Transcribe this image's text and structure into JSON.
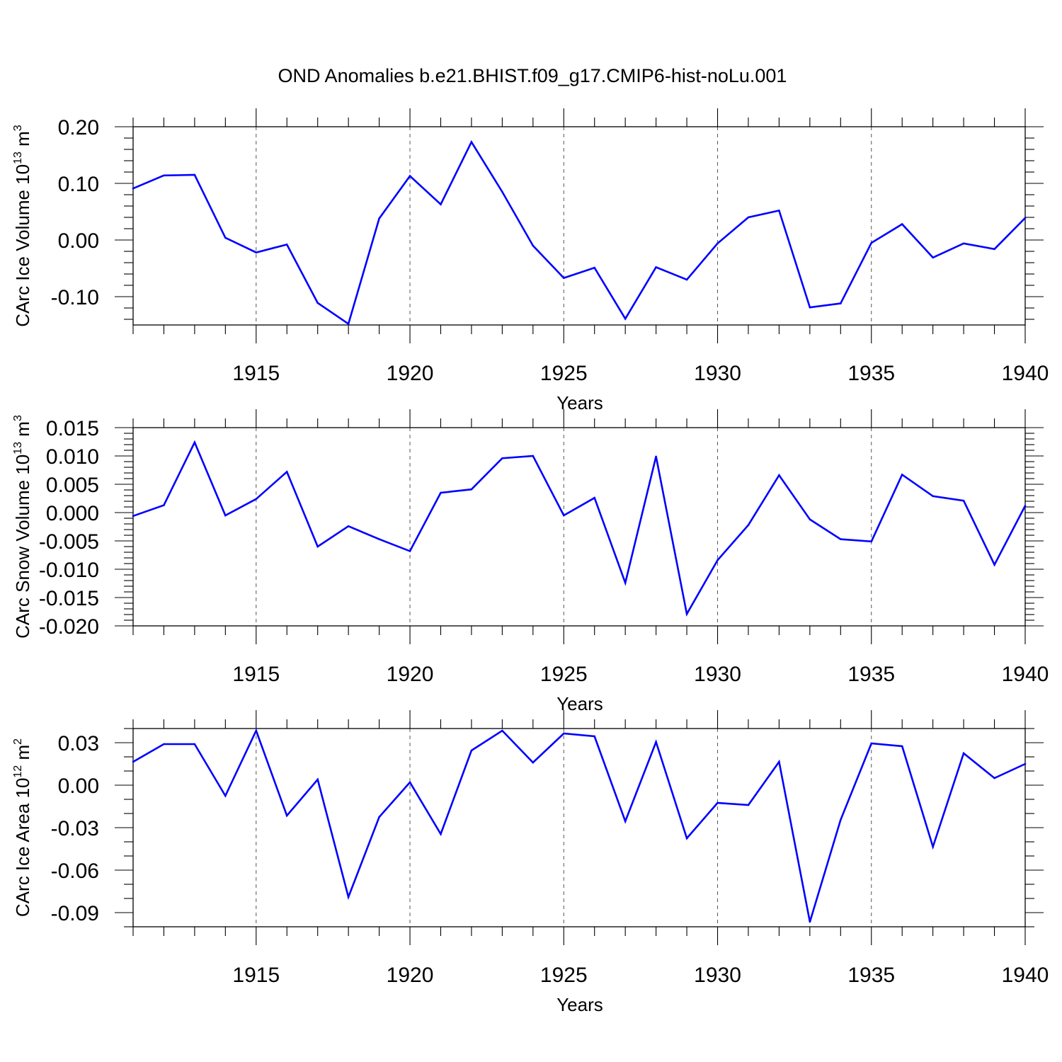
{
  "page_title": "OND Anomalies b.e21.BHIST.f09_g17.CMIP6-hist-noLu.001",
  "colors": {
    "line": "#0000ff",
    "grid": "#555555"
  },
  "chart_data": [
    {
      "type": "line",
      "ylabel": "CArc Ice Volume 10",
      "ylabel_exp": "13",
      "ylabel_unit": " m",
      "ylabel_unit_exp": "3",
      "xlabel": "Years",
      "xlim": [
        1911,
        1940
      ],
      "ylim": [
        -0.15,
        0.2
      ],
      "yticks": [
        -0.1,
        0.0,
        0.1,
        0.2
      ],
      "ytick_labels": [
        "-0.10",
        "0.00",
        "0.10",
        "0.20"
      ],
      "yminor_step": 0.02,
      "xticks": [
        1915,
        1920,
        1925,
        1930,
        1935,
        1940
      ],
      "xtick_labels": [
        "1915",
        "1920",
        "1925",
        "1930",
        "1935",
        "1940"
      ],
      "grid": "vertical dashed at major x ticks",
      "x": [
        1911,
        1912,
        1913,
        1914,
        1915,
        1916,
        1917,
        1918,
        1919,
        1920,
        1921,
        1922,
        1923,
        1924,
        1925,
        1926,
        1927,
        1928,
        1929,
        1930,
        1931,
        1932,
        1933,
        1934,
        1935,
        1936,
        1937,
        1938,
        1939,
        1940
      ],
      "values": [
        0.091,
        0.114,
        0.115,
        0.004,
        -0.022,
        -0.008,
        -0.111,
        -0.148,
        0.038,
        0.113,
        0.063,
        0.173,
        0.085,
        -0.01,
        -0.067,
        -0.049,
        -0.139,
        -0.048,
        -0.07,
        -0.006,
        0.04,
        0.052,
        -0.119,
        -0.112,
        -0.005,
        0.028,
        -0.031,
        -0.006,
        -0.016,
        0.039
      ]
    },
    {
      "type": "line",
      "ylabel": "CArc Snow Volume 10",
      "ylabel_exp": "13",
      "ylabel_unit": " m",
      "ylabel_unit_exp": "3",
      "xlabel": "Years",
      "xlim": [
        1911,
        1940
      ],
      "ylim": [
        -0.02,
        0.015
      ],
      "yticks": [
        -0.02,
        -0.015,
        -0.01,
        -0.005,
        0.0,
        0.005,
        0.01,
        0.015
      ],
      "ytick_labels": [
        "-0.020",
        "-0.015",
        "-0.010",
        "-0.005",
        "0.000",
        "0.005",
        "0.010",
        "0.015"
      ],
      "yminor_step": 0.001,
      "xticks": [
        1915,
        1920,
        1925,
        1930,
        1935,
        1940
      ],
      "xtick_labels": [
        "1915",
        "1920",
        "1925",
        "1930",
        "1935",
        "1940"
      ],
      "grid": "vertical dashed at major x ticks",
      "x": [
        1911,
        1912,
        1913,
        1914,
        1915,
        1916,
        1917,
        1918,
        1919,
        1920,
        1921,
        1922,
        1923,
        1924,
        1925,
        1926,
        1927,
        1928,
        1929,
        1930,
        1931,
        1932,
        1933,
        1934,
        1935,
        1936,
        1937,
        1938,
        1939,
        1940
      ],
      "values": [
        -0.0006,
        0.0013,
        0.0124,
        -0.0005,
        0.0024,
        0.0072,
        -0.006,
        -0.0024,
        -0.0047,
        -0.0068,
        0.0035,
        0.0041,
        0.0096,
        0.01,
        -0.0005,
        0.0026,
        -0.0124,
        0.0099,
        -0.0179,
        -0.0084,
        -0.0022,
        0.0066,
        -0.0012,
        -0.0047,
        -0.0051,
        0.0067,
        0.0029,
        0.0021,
        -0.0092,
        0.0012
      ]
    },
    {
      "type": "line",
      "ylabel": "CArc Ice Area 10",
      "ylabel_exp": "12",
      "ylabel_unit": " m",
      "ylabel_unit_exp": "2",
      "xlabel": "Years",
      "xlim": [
        1911,
        1940
      ],
      "ylim": [
        -0.1,
        0.04
      ],
      "yticks": [
        -0.09,
        -0.06,
        -0.03,
        0.0,
        0.03
      ],
      "ytick_labels": [
        "-0.09",
        "-0.06",
        "-0.03",
        "0.00",
        "0.03"
      ],
      "yminor_step": 0.01,
      "xticks": [
        1915,
        1920,
        1925,
        1930,
        1935,
        1940
      ],
      "xtick_labels": [
        "1915",
        "1920",
        "1925",
        "1930",
        "1935",
        "1940"
      ],
      "grid": "vertical dashed at major x ticks",
      "x": [
        1911,
        1912,
        1913,
        1914,
        1915,
        1916,
        1917,
        1918,
        1919,
        1920,
        1921,
        1922,
        1923,
        1924,
        1925,
        1926,
        1927,
        1928,
        1929,
        1930,
        1931,
        1932,
        1933,
        1934,
        1935,
        1936,
        1937,
        1938,
        1939,
        1940
      ],
      "values": [
        0.0165,
        0.029,
        0.029,
        -0.0075,
        0.0385,
        -0.0215,
        0.004,
        -0.079,
        -0.0225,
        0.002,
        -0.0345,
        0.0245,
        0.0385,
        0.016,
        0.0365,
        0.0345,
        -0.0255,
        0.0305,
        -0.0375,
        -0.0125,
        -0.014,
        0.0165,
        -0.0965,
        -0.0245,
        0.0295,
        0.0275,
        -0.0435,
        0.0225,
        0.005,
        0.015
      ]
    }
  ]
}
